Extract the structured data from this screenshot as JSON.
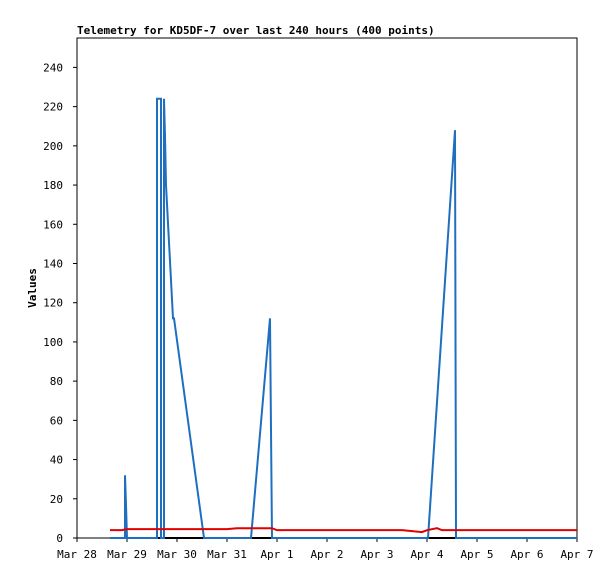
{
  "chart_data": {
    "type": "line",
    "title": "Telemetry for KD5DF-7 over last 240 hours (400 points)",
    "y_label": "Values",
    "xlim": [
      0,
      10
    ],
    "xticks": [
      {
        "value": 0,
        "label": "Mar 28"
      },
      {
        "value": 1,
        "label": "Mar 29"
      },
      {
        "value": 2,
        "label": "Mar 30"
      },
      {
        "value": 3,
        "label": "Mar 31"
      },
      {
        "value": 4,
        "label": "Apr 1"
      },
      {
        "value": 5,
        "label": "Apr 2"
      },
      {
        "value": 6,
        "label": "Apr 3"
      },
      {
        "value": 7,
        "label": "Apr 4"
      },
      {
        "value": 8,
        "label": "Apr 5"
      },
      {
        "value": 9,
        "label": "Apr 6"
      },
      {
        "value": 10,
        "label": "Apr 7"
      }
    ],
    "ylim": [
      0,
      255
    ],
    "yticks": [
      0,
      20,
      40,
      60,
      80,
      100,
      120,
      140,
      160,
      180,
      200,
      220,
      240
    ],
    "series": [
      {
        "color": "#000000",
        "x": [
          0.66,
          10
        ],
        "values": [
          0,
          0
        ]
      },
      {
        "color": "#1f6fc0",
        "x": [
          0.66,
          0.96,
          0.96,
          0.98,
          1.0,
          1.6,
          1.6,
          1.68,
          1.68,
          1.74,
          1.74,
          1.76,
          1.78,
          1.92,
          1.94,
          2.54,
          3.48,
          3.86,
          3.88,
          3.9,
          7.02,
          7.56,
          7.58,
          10
        ],
        "values": [
          0,
          0,
          32,
          17,
          0,
          0,
          224,
          224,
          0,
          0,
          224,
          205,
          180,
          112,
          112,
          0,
          0,
          112,
          55,
          0,
          0,
          208,
          0,
          0
        ]
      },
      {
        "color": "#e00000",
        "x": [
          0.66,
          0.9,
          1.0,
          3.0,
          3.2,
          3.9,
          4.0,
          6.5,
          6.9,
          7.0,
          7.2,
          7.3,
          10
        ],
        "values": [
          4,
          4,
          4.5,
          4.5,
          5,
          5,
          4,
          4,
          3,
          4,
          5,
          4,
          4
        ]
      }
    ]
  }
}
